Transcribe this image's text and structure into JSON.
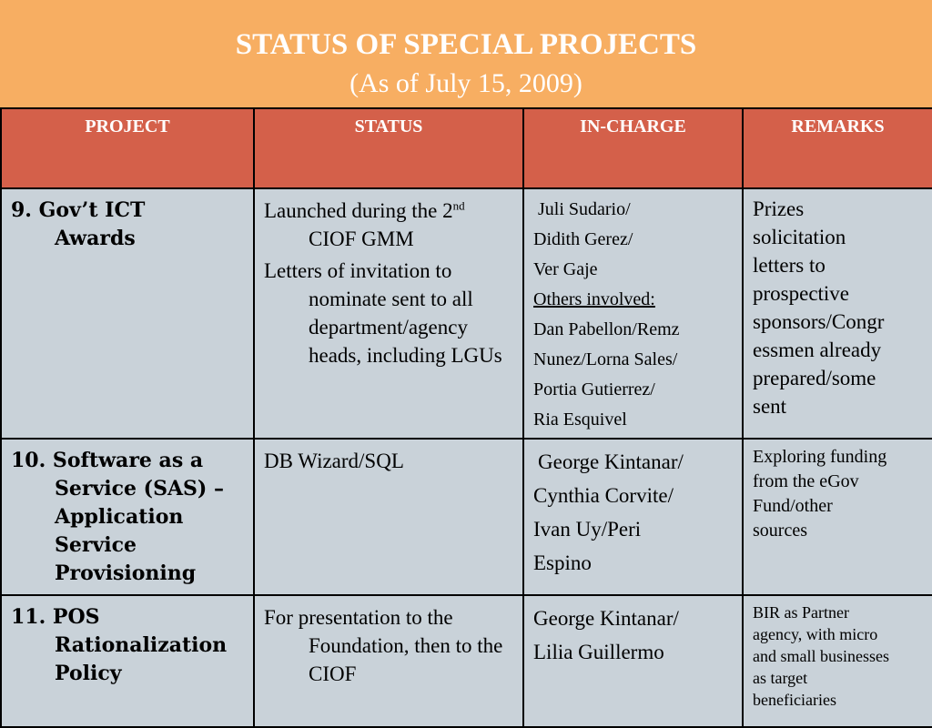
{
  "header": {
    "title": "STATUS OF SPECIAL PROJECTS",
    "subtitle": "(As of July 15, 2009)"
  },
  "table": {
    "columns": [
      "PROJECT",
      "STATUS",
      "IN-CHARGE",
      "REMARKS"
    ],
    "rows": [
      {
        "project": [
          "9.  Gov’t ICT",
          "Awards"
        ],
        "status": {
          "line1_pre": "Launched during the 2",
          "line1_sup": "nd",
          "line1_post": " CIOF GMM",
          "line2": "Letters of invitation to nominate sent to all department/agency heads, including LGUs"
        },
        "in_charge": [
          "Juli Sudario/",
          "Didith Gerez/",
          "Ver Gaje",
          "Others involved:",
          "Dan Pabellon/Remz",
          "Nunez/Lorna Sales/",
          "Portia Gutierrez/",
          "Ria Esquivel"
        ],
        "remarks": [
          "Prizes",
          "solicitation",
          "letters to",
          "prospective",
          "sponsors/Congr",
          "essmen already",
          "prepared/some",
          "sent"
        ]
      },
      {
        "project": [
          "10. Software as a",
          "Service (SAS) –",
          "Application",
          "Service",
          "Provisioning"
        ],
        "status": "DB Wizard/SQL",
        "in_charge": [
          "George Kintanar/",
          "Cynthia Corvite/",
          "Ivan Uy/Peri",
          "Espino"
        ],
        "remarks": [
          "Exploring funding",
          "from the eGov",
          "Fund/other",
          "sources"
        ]
      },
      {
        "project": [
          "11.  POS",
          "Rationalization",
          "Policy"
        ],
        "status": "For presentation to the Foundation, then to the CIOF",
        "in_charge": [
          "George Kintanar/",
          "Lilia Guillermo"
        ],
        "remarks": [
          "BIR as Partner",
          "agency, with micro",
          "and small businesses",
          "as target",
          "beneficiaries"
        ]
      }
    ]
  }
}
